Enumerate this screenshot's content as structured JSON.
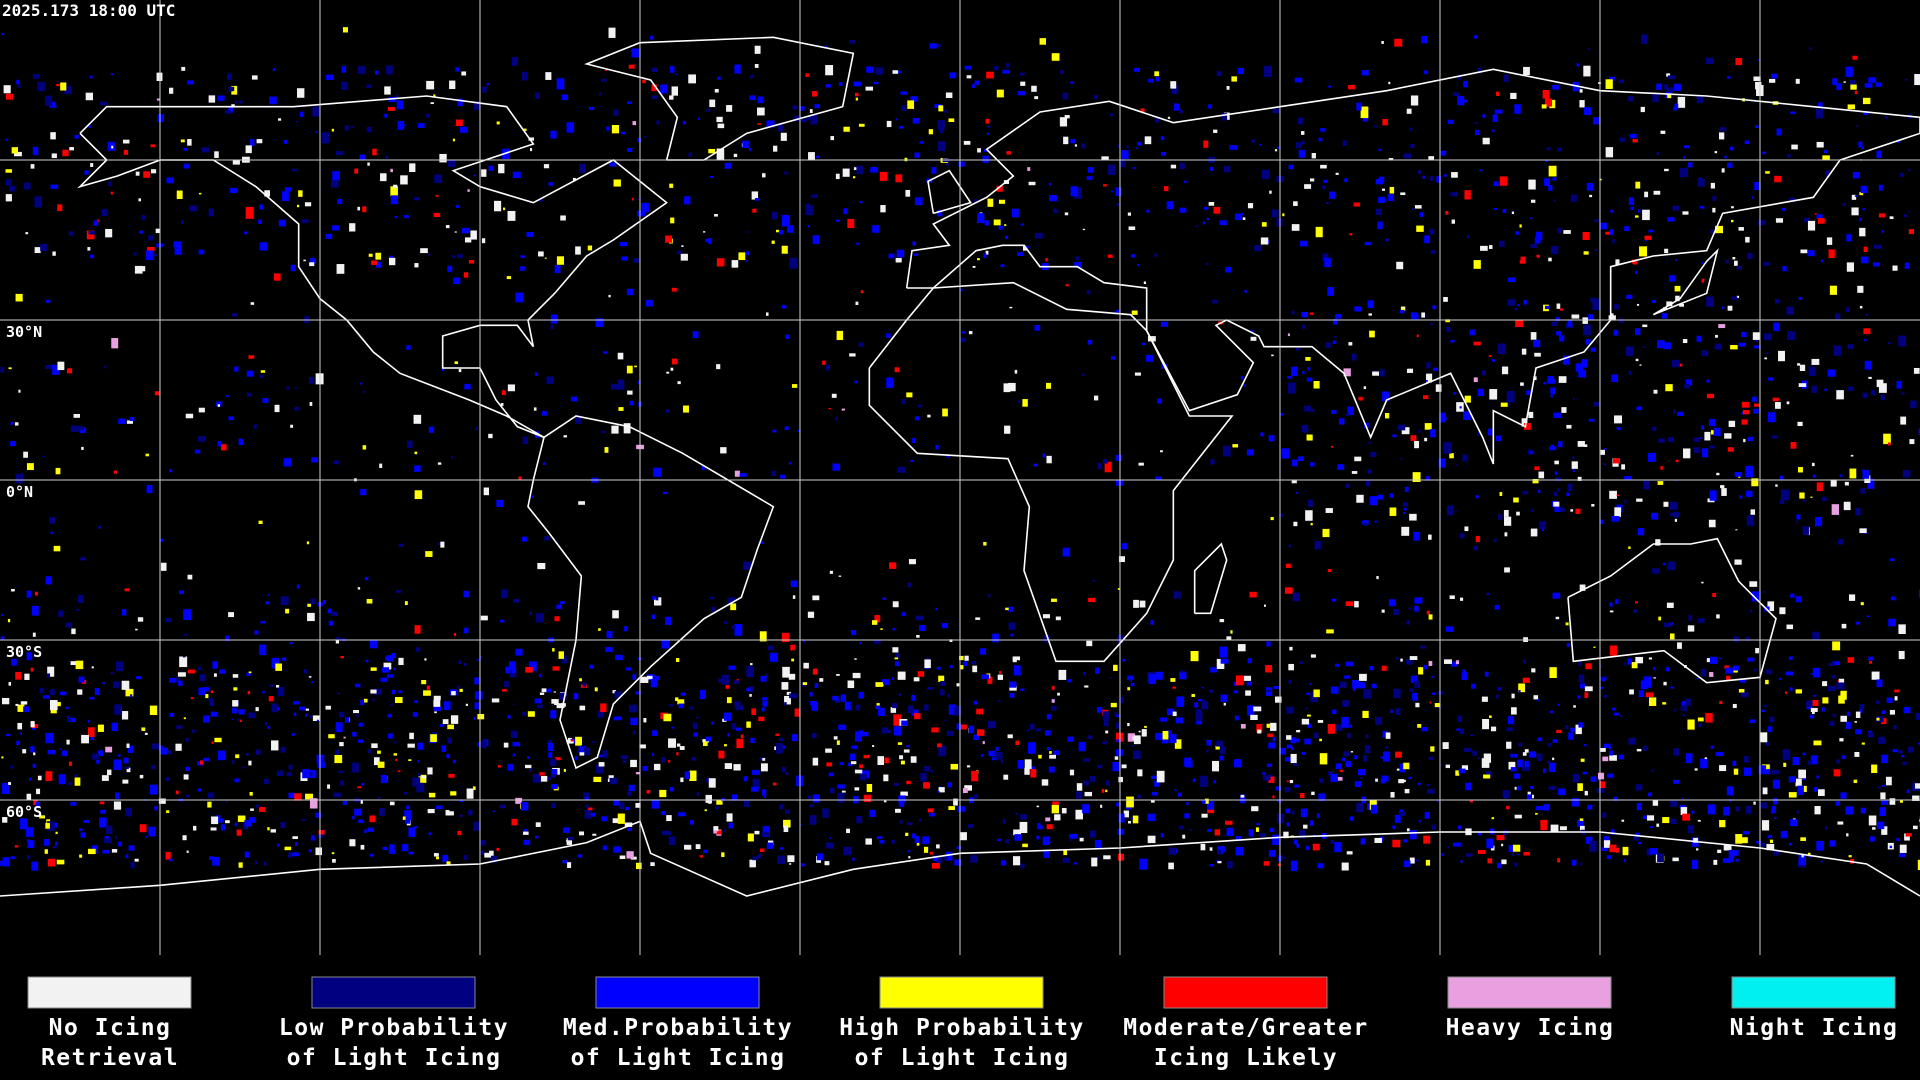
{
  "header": {
    "timestamp": "2025.173 18:00 UTC"
  },
  "map": {
    "lat_labels": [
      "30°N",
      "0°N",
      "30°S",
      "60°S"
    ]
  },
  "legend": {
    "items": [
      {
        "color": "#f2f2f2",
        "label_lines": [
          "No Icing",
          "Retrieval"
        ]
      },
      {
        "color": "#000080",
        "label_lines": [
          "Low Probability",
          "of Light Icing"
        ]
      },
      {
        "color": "#0000ff",
        "label_lines": [
          "Med.Probability",
          "of Light Icing"
        ]
      },
      {
        "color": "#ffff00",
        "label_lines": [
          "High Probability",
          "of Light Icing"
        ]
      },
      {
        "color": "#ff0000",
        "label_lines": [
          "Moderate/Greater",
          "Icing Likely"
        ]
      },
      {
        "color": "#e8a0e0",
        "label_lines": [
          "Heavy Icing"
        ]
      },
      {
        "color": "#00f0f0",
        "label_lines": [
          "Night Icing"
        ]
      }
    ]
  }
}
